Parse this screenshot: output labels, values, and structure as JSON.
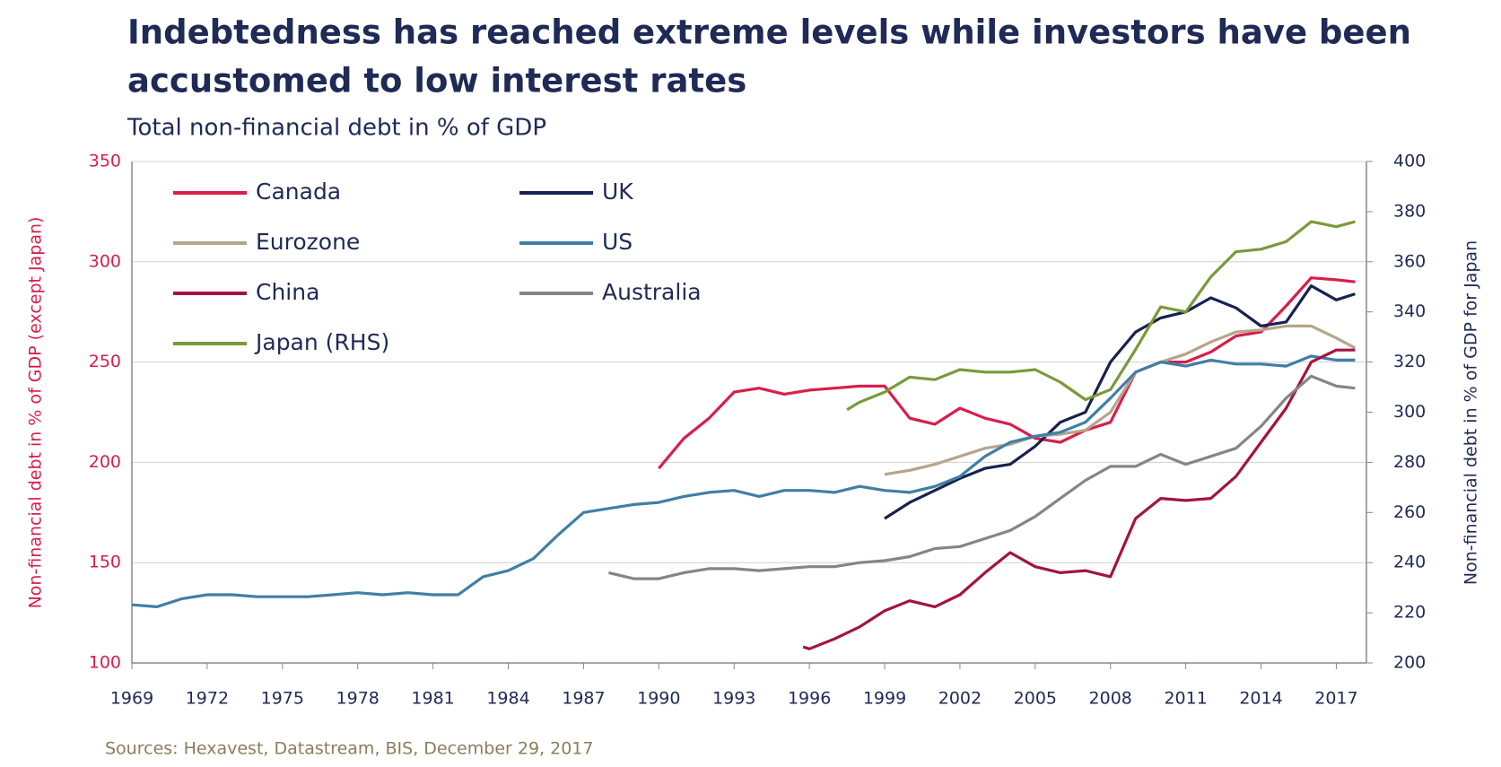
{
  "chart_data": {
    "type": "line",
    "title": [
      "Indebtedness has reached extreme levels while investors have been",
      "accustomed to low interest rates"
    ],
    "subtitle": "Total non-financial debt in % of GDP",
    "ylabel": "Non-financial debt in % of GDP (except Japan)",
    "y2label": "Non-financial debt in % of GDP for Japan",
    "source": "Sources: Hexavest, Datastream, BIS, December 29, 2017",
    "xlim": [
      1969,
      2018.2
    ],
    "xticks": [
      1969,
      1972,
      1975,
      1978,
      1981,
      1984,
      1987,
      1990,
      1993,
      1996,
      1999,
      2002,
      2005,
      2008,
      2011,
      2014,
      2017
    ],
    "ylim": [
      100,
      350
    ],
    "yticks": [
      100,
      150,
      200,
      250,
      300,
      350
    ],
    "y2lim": [
      200,
      400
    ],
    "y2ticks": [
      200,
      220,
      240,
      260,
      280,
      300,
      320,
      340,
      360,
      380,
      400
    ],
    "grid": true,
    "series": [
      {
        "name": "Canada",
        "color": "#d81e4b",
        "x": [
          1990,
          1991,
          1992,
          1993,
          1994,
          1995,
          1996,
          1997,
          1998,
          1999,
          2000,
          2001,
          2002,
          2003,
          2004,
          2005,
          2006,
          2007,
          2008,
          2009,
          2010,
          2011,
          2012,
          2013,
          2014,
          2015,
          2016,
          2017,
          2017.75
        ],
        "values": [
          197,
          212,
          222,
          235,
          237,
          234,
          236,
          237,
          238,
          238,
          222,
          219,
          227,
          222,
          219,
          212,
          210,
          216,
          220,
          245,
          250,
          250,
          255,
          263,
          265,
          278,
          292,
          291,
          290
        ]
      },
      {
        "name": "UK",
        "color": "#16224f",
        "x": [
          1999,
          2000,
          2001,
          2002,
          2003,
          2004,
          2005,
          2006,
          2007,
          2008,
          2009,
          2010,
          2011,
          2012,
          2013,
          2014,
          2015,
          2016,
          2017,
          2017.75
        ],
        "values": [
          172,
          180,
          186,
          192,
          197,
          199,
          208,
          220,
          225,
          250,
          265,
          272,
          275,
          282,
          277,
          268,
          270,
          288,
          281,
          284
        ]
      },
      {
        "name": "Eurozone",
        "color": "#b5a58c",
        "x": [
          1999,
          2000,
          2001,
          2002,
          2003,
          2004,
          2005,
          2006,
          2007,
          2008,
          2009,
          2010,
          2011,
          2012,
          2013,
          2014,
          2015,
          2016,
          2017,
          2017.75
        ],
        "values": [
          194,
          196,
          199,
          203,
          207,
          209,
          213,
          214,
          216,
          225,
          245,
          250,
          254,
          260,
          265,
          266,
          268,
          268,
          262,
          257
        ]
      },
      {
        "name": "US",
        "color": "#3f7fa6",
        "x": [
          1969,
          1970,
          1971,
          1972,
          1973,
          1974,
          1975,
          1976,
          1977,
          1978,
          1979,
          1980,
          1981,
          1982,
          1983,
          1984,
          1985,
          1986,
          1987,
          1988,
          1989,
          1990,
          1991,
          1992,
          1993,
          1994,
          1995,
          1996,
          1997,
          1998,
          1999,
          2000,
          2001,
          2002,
          2003,
          2004,
          2005,
          2006,
          2007,
          2008,
          2009,
          2010,
          2011,
          2012,
          2013,
          2014,
          2015,
          2016,
          2017,
          2017.75
        ],
        "values": [
          129,
          128,
          132,
          134,
          134,
          133,
          133,
          133,
          134,
          135,
          134,
          135,
          134,
          134,
          143,
          146,
          152,
          164,
          175,
          177,
          179,
          180,
          183,
          185,
          186,
          183,
          186,
          186,
          185,
          188,
          186,
          185,
          188,
          193,
          203,
          210,
          213,
          215,
          220,
          232,
          245,
          250,
          248,
          251,
          249,
          249,
          248,
          253,
          251,
          251
        ]
      },
      {
        "name": "China",
        "color": "#a3143f",
        "x": [
          1995.75,
          1996,
          1997,
          1998,
          1999,
          2000,
          2001,
          2002,
          2003,
          2004,
          2005,
          2006,
          2007,
          2008,
          2009,
          2010,
          2011,
          2012,
          2013,
          2014,
          2015,
          2016,
          2017,
          2017.75
        ],
        "values": [
          108,
          107,
          112,
          118,
          126,
          131,
          128,
          134,
          145,
          155,
          148,
          145,
          146,
          143,
          172,
          182,
          181,
          182,
          193,
          210,
          227,
          250,
          256,
          256
        ]
      },
      {
        "name": "Australia",
        "color": "#858585",
        "x": [
          1988,
          1989,
          1990,
          1991,
          1992,
          1993,
          1994,
          1995,
          1996,
          1997,
          1998,
          1999,
          2000,
          2001,
          2002,
          2003,
          2004,
          2005,
          2006,
          2007,
          2008,
          2009,
          2010,
          2011,
          2012,
          2013,
          2014,
          2015,
          2016,
          2017,
          2017.75
        ],
        "values": [
          145,
          142,
          142,
          145,
          147,
          147,
          146,
          147,
          148,
          148,
          150,
          151,
          153,
          157,
          158,
          162,
          166,
          173,
          182,
          191,
          198,
          198,
          204,
          199,
          203,
          207,
          218,
          232,
          243,
          238,
          237
        ]
      },
      {
        "name": "Japan (RHS)",
        "color": "#7a9a3a",
        "axis": "y2",
        "x": [
          1997.5,
          1998,
          1999,
          2000,
          2001,
          2002,
          2003,
          2004,
          2005,
          2006,
          2007,
          2008,
          2009,
          2010,
          2011,
          2012,
          2013,
          2014,
          2015,
          2016,
          2017,
          2017.75
        ],
        "values": [
          301,
          304,
          308,
          314,
          313,
          317,
          316,
          316,
          317,
          312,
          305,
          309,
          325,
          342,
          340,
          354,
          364,
          365,
          368,
          376,
          374,
          376
        ]
      }
    ]
  }
}
